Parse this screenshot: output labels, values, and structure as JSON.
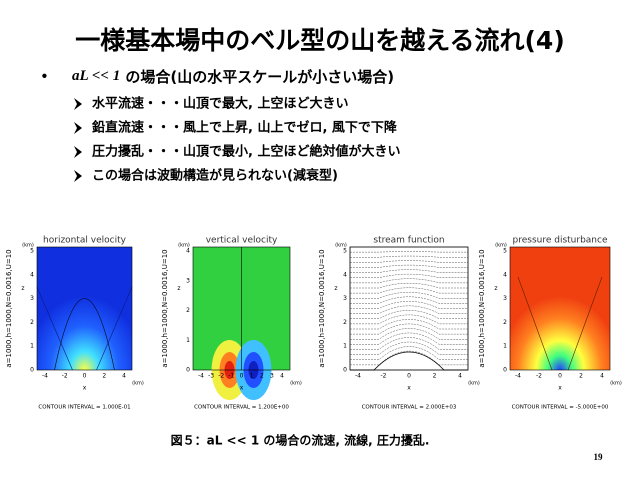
{
  "title": "一様基本場中のベル型の山を越える流れ(4)",
  "bullet": {
    "math": "aL << 1",
    "text": " の場合(山の水平スケールが小さい場合)"
  },
  "items": [
    "水平流速・・・山頂で最大,  上空ほど大きい",
    "鉛直流速・・・風上で上昇,  山上でゼロ,  風下で下降",
    "圧力擾乱・・・山頂で最小,  上空ほど絶対値が大きい",
    "この場合は波動構造が見られない(減衰型)"
  ],
  "panels": [
    {
      "title": "horizontal velocity",
      "side": "a=1000,h=1000,N=0.0016,U=10",
      "zlabel": "z",
      "unit": "(km)",
      "xlabel": "x",
      "xunit": "(km)",
      "yticks": [
        "0",
        "1",
        "2",
        "3",
        "4",
        "5"
      ],
      "xticks": [
        "-4",
        "-2",
        "0",
        "2",
        "4"
      ],
      "interval": "CONTOUR INTERVAL = 1.000E-01"
    },
    {
      "title": "vertical velocity",
      "side": "a=1000,h=1000,N=0.0016,U=10",
      "zlabel": "z",
      "unit": "(km)",
      "xlabel": "x",
      "xunit": "(km)",
      "yticks": [
        "0",
        "1",
        "2",
        "3",
        "4"
      ],
      "xticks": [
        "-4",
        "-3",
        "-2",
        "-1",
        "0",
        "1",
        "2",
        "3",
        "4"
      ],
      "interval": "CONTOUR INTERVAL = 1.200E+00"
    },
    {
      "title": "stream function",
      "side": "a=1000,h=1000,N=0.0016,U=10",
      "zlabel": "z",
      "unit": "(km)",
      "xlabel": "x",
      "xunit": "(km)",
      "yticks": [
        "0",
        "1",
        "2",
        "3",
        "4",
        "5"
      ],
      "xticks": [
        "-4",
        "-2",
        "0",
        "2",
        "4"
      ],
      "interval": "CONTOUR INTERVAL = 2.000E+03"
    },
    {
      "title": "pressure disturbance",
      "side": "a=1000,h=1000,N=0.0016,U=10",
      "zlabel": "z",
      "unit": "(km)",
      "xlabel": "x",
      "xunit": "(km)",
      "yticks": [
        "0",
        "1",
        "2",
        "3",
        "4",
        "5"
      ],
      "xticks": [
        "-4",
        "-2",
        "0",
        "2",
        "4"
      ],
      "interval": "CONTOUR INTERVAL = -5.000E+00"
    }
  ],
  "caption": "図５：aL << 1 の場合の流速, 流線, 圧力擾乱.",
  "page_number": "19"
}
